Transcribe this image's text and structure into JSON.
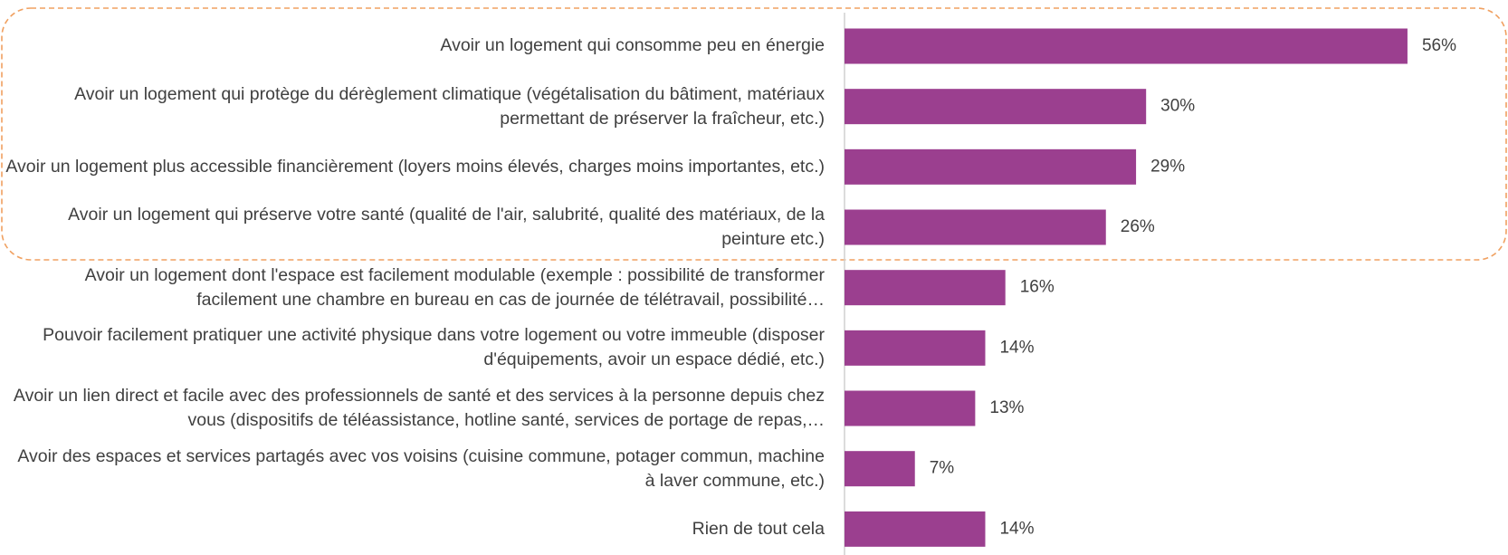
{
  "chart_data": {
    "type": "barh",
    "categories": [
      "Avoir un logement qui consomme peu en énergie",
      "Avoir un logement qui protège du dérèglement climatique (végétalisation du bâtiment, matériaux permettant de préserver la fraîcheur, etc.)",
      "Avoir un logement plus accessible financièrement (loyers moins élevés, charges moins importantes, etc.)",
      "Avoir un logement qui préserve votre santé (qualité de l'air, salubrité, qualité des matériaux, de la peinture etc.)",
      "Avoir un logement dont l'espace est facilement modulable (exemple : possibilité de transformer facilement une chambre en bureau en cas de journée de télétravail, possibilité…",
      "Pouvoir facilement pratiquer une activité physique dans votre logement ou votre immeuble (disposer d'équipements, avoir un espace dédié, etc.)",
      "Avoir un lien direct et facile avec des professionnels de santé et des services à la personne depuis chez vous (dispositifs de téléassistance, hotline santé, services de portage de repas,…",
      "Avoir des espaces et services partagés avec vos voisins (cuisine commune, potager commun, machine à laver commune, etc.)",
      "Rien de tout cela"
    ],
    "values": [
      56,
      30,
      29,
      26,
      16,
      14,
      13,
      7,
      14
    ],
    "value_labels": [
      "56%",
      "30%",
      "29%",
      "26%",
      "16%",
      "14%",
      "13%",
      "7%",
      "14%"
    ],
    "color": "#9b3f8f",
    "xlim": [
      0,
      66
    ]
  }
}
